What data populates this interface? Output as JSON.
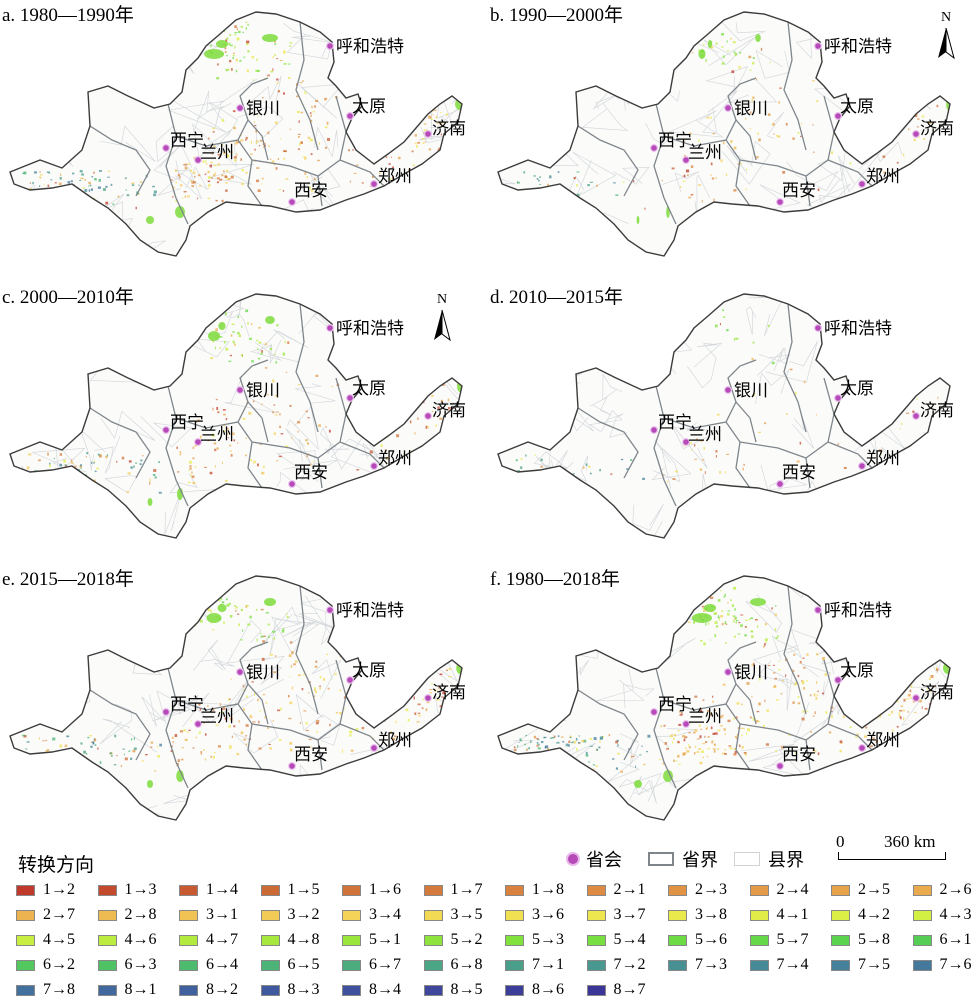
{
  "panels": [
    {
      "title": "a. 1980—1990年",
      "show_north": false,
      "density": 1.0
    },
    {
      "title": "b. 1990—2000年",
      "show_north": true,
      "density": 0.35
    },
    {
      "title": "c. 2000—2010年",
      "show_north": true,
      "density": 0.6
    },
    {
      "title": "d. 2010—2015年",
      "show_north": false,
      "density": 0.2
    },
    {
      "title": "e. 2015—2018年",
      "show_north": false,
      "density": 0.75
    },
    {
      "title": "f. 1980—2018年",
      "show_north": false,
      "density": 1.1
    }
  ],
  "north_label": "N",
  "cities": [
    "呼和浩特",
    "银川",
    "太原",
    "西宁",
    "兰州",
    "济南",
    "郑州",
    "西安"
  ],
  "legend": {
    "title": "转换方向",
    "capital_label": "省会",
    "province_label": "省界",
    "county_label": "县界",
    "scale_zero": "0",
    "scale_max": "360 km",
    "items": [
      {
        "label": "1→2",
        "color": "#c0392b"
      },
      {
        "label": "1→3",
        "color": "#c44a2e"
      },
      {
        "label": "1→4",
        "color": "#c85a32"
      },
      {
        "label": "1→5",
        "color": "#cc6a36"
      },
      {
        "label": "1→6",
        "color": "#d0733a"
      },
      {
        "label": "1→7",
        "color": "#d47a3c"
      },
      {
        "label": "1→8",
        "color": "#d9823f"
      },
      {
        "label": "2→1",
        "color": "#dd8a42"
      },
      {
        "label": "2→3",
        "color": "#e09345"
      },
      {
        "label": "2→4",
        "color": "#e39b47"
      },
      {
        "label": "2→5",
        "color": "#e6a34a"
      },
      {
        "label": "2→6",
        "color": "#e9ab4d"
      },
      {
        "label": "2→7",
        "color": "#ecb350"
      },
      {
        "label": "2→8",
        "color": "#eebb52"
      },
      {
        "label": "3→1",
        "color": "#f0c354"
      },
      {
        "label": "3→2",
        "color": "#f2cb56"
      },
      {
        "label": "3→4",
        "color": "#f4d358"
      },
      {
        "label": "3→5",
        "color": "#f3da55"
      },
      {
        "label": "3→6",
        "color": "#f1e052"
      },
      {
        "label": "3→7",
        "color": "#eee64f"
      },
      {
        "label": "3→8",
        "color": "#e9e94c"
      },
      {
        "label": "4→1",
        "color": "#e2ec49"
      },
      {
        "label": "4→2",
        "color": "#dbee46"
      },
      {
        "label": "4→3",
        "color": "#d2ef44"
      },
      {
        "label": "4→5",
        "color": "#c8ee42"
      },
      {
        "label": "4→6",
        "color": "#bdec40"
      },
      {
        "label": "4→7",
        "color": "#b2ea3e"
      },
      {
        "label": "4→8",
        "color": "#a6e83d"
      },
      {
        "label": "5→1",
        "color": "#9ae63c"
      },
      {
        "label": "5→2",
        "color": "#8ee43c"
      },
      {
        "label": "5→3",
        "color": "#82e23d"
      },
      {
        "label": "5→4",
        "color": "#77df40"
      },
      {
        "label": "5→6",
        "color": "#6ddc44"
      },
      {
        "label": "5→7",
        "color": "#64d849"
      },
      {
        "label": "5→8",
        "color": "#5cd34f"
      },
      {
        "label": "6→1",
        "color": "#56ce56"
      },
      {
        "label": "6→2",
        "color": "#52c85e"
      },
      {
        "label": "6→3",
        "color": "#4fc266"
      },
      {
        "label": "6→4",
        "color": "#4dbb6e"
      },
      {
        "label": "6→5",
        "color": "#4cb476"
      },
      {
        "label": "6→7",
        "color": "#4bad7d"
      },
      {
        "label": "6→8",
        "color": "#4aa684"
      },
      {
        "label": "7→1",
        "color": "#499f8a"
      },
      {
        "label": "7→2",
        "color": "#48988f"
      },
      {
        "label": "7→3",
        "color": "#479093"
      },
      {
        "label": "7→4",
        "color": "#468997"
      },
      {
        "label": "7→5",
        "color": "#45819a"
      },
      {
        "label": "7→6",
        "color": "#44799c"
      },
      {
        "label": "7→8",
        "color": "#43719d"
      },
      {
        "label": "8→1",
        "color": "#42699e"
      },
      {
        "label": "8→2",
        "color": "#41619e"
      },
      {
        "label": "8→3",
        "color": "#40599e"
      },
      {
        "label": "8→4",
        "color": "#3f509d"
      },
      {
        "label": "8→5",
        "color": "#3e479c"
      },
      {
        "label": "8→6",
        "color": "#3d3e9a"
      },
      {
        "label": "8→7",
        "color": "#3c3598"
      }
    ]
  }
}
